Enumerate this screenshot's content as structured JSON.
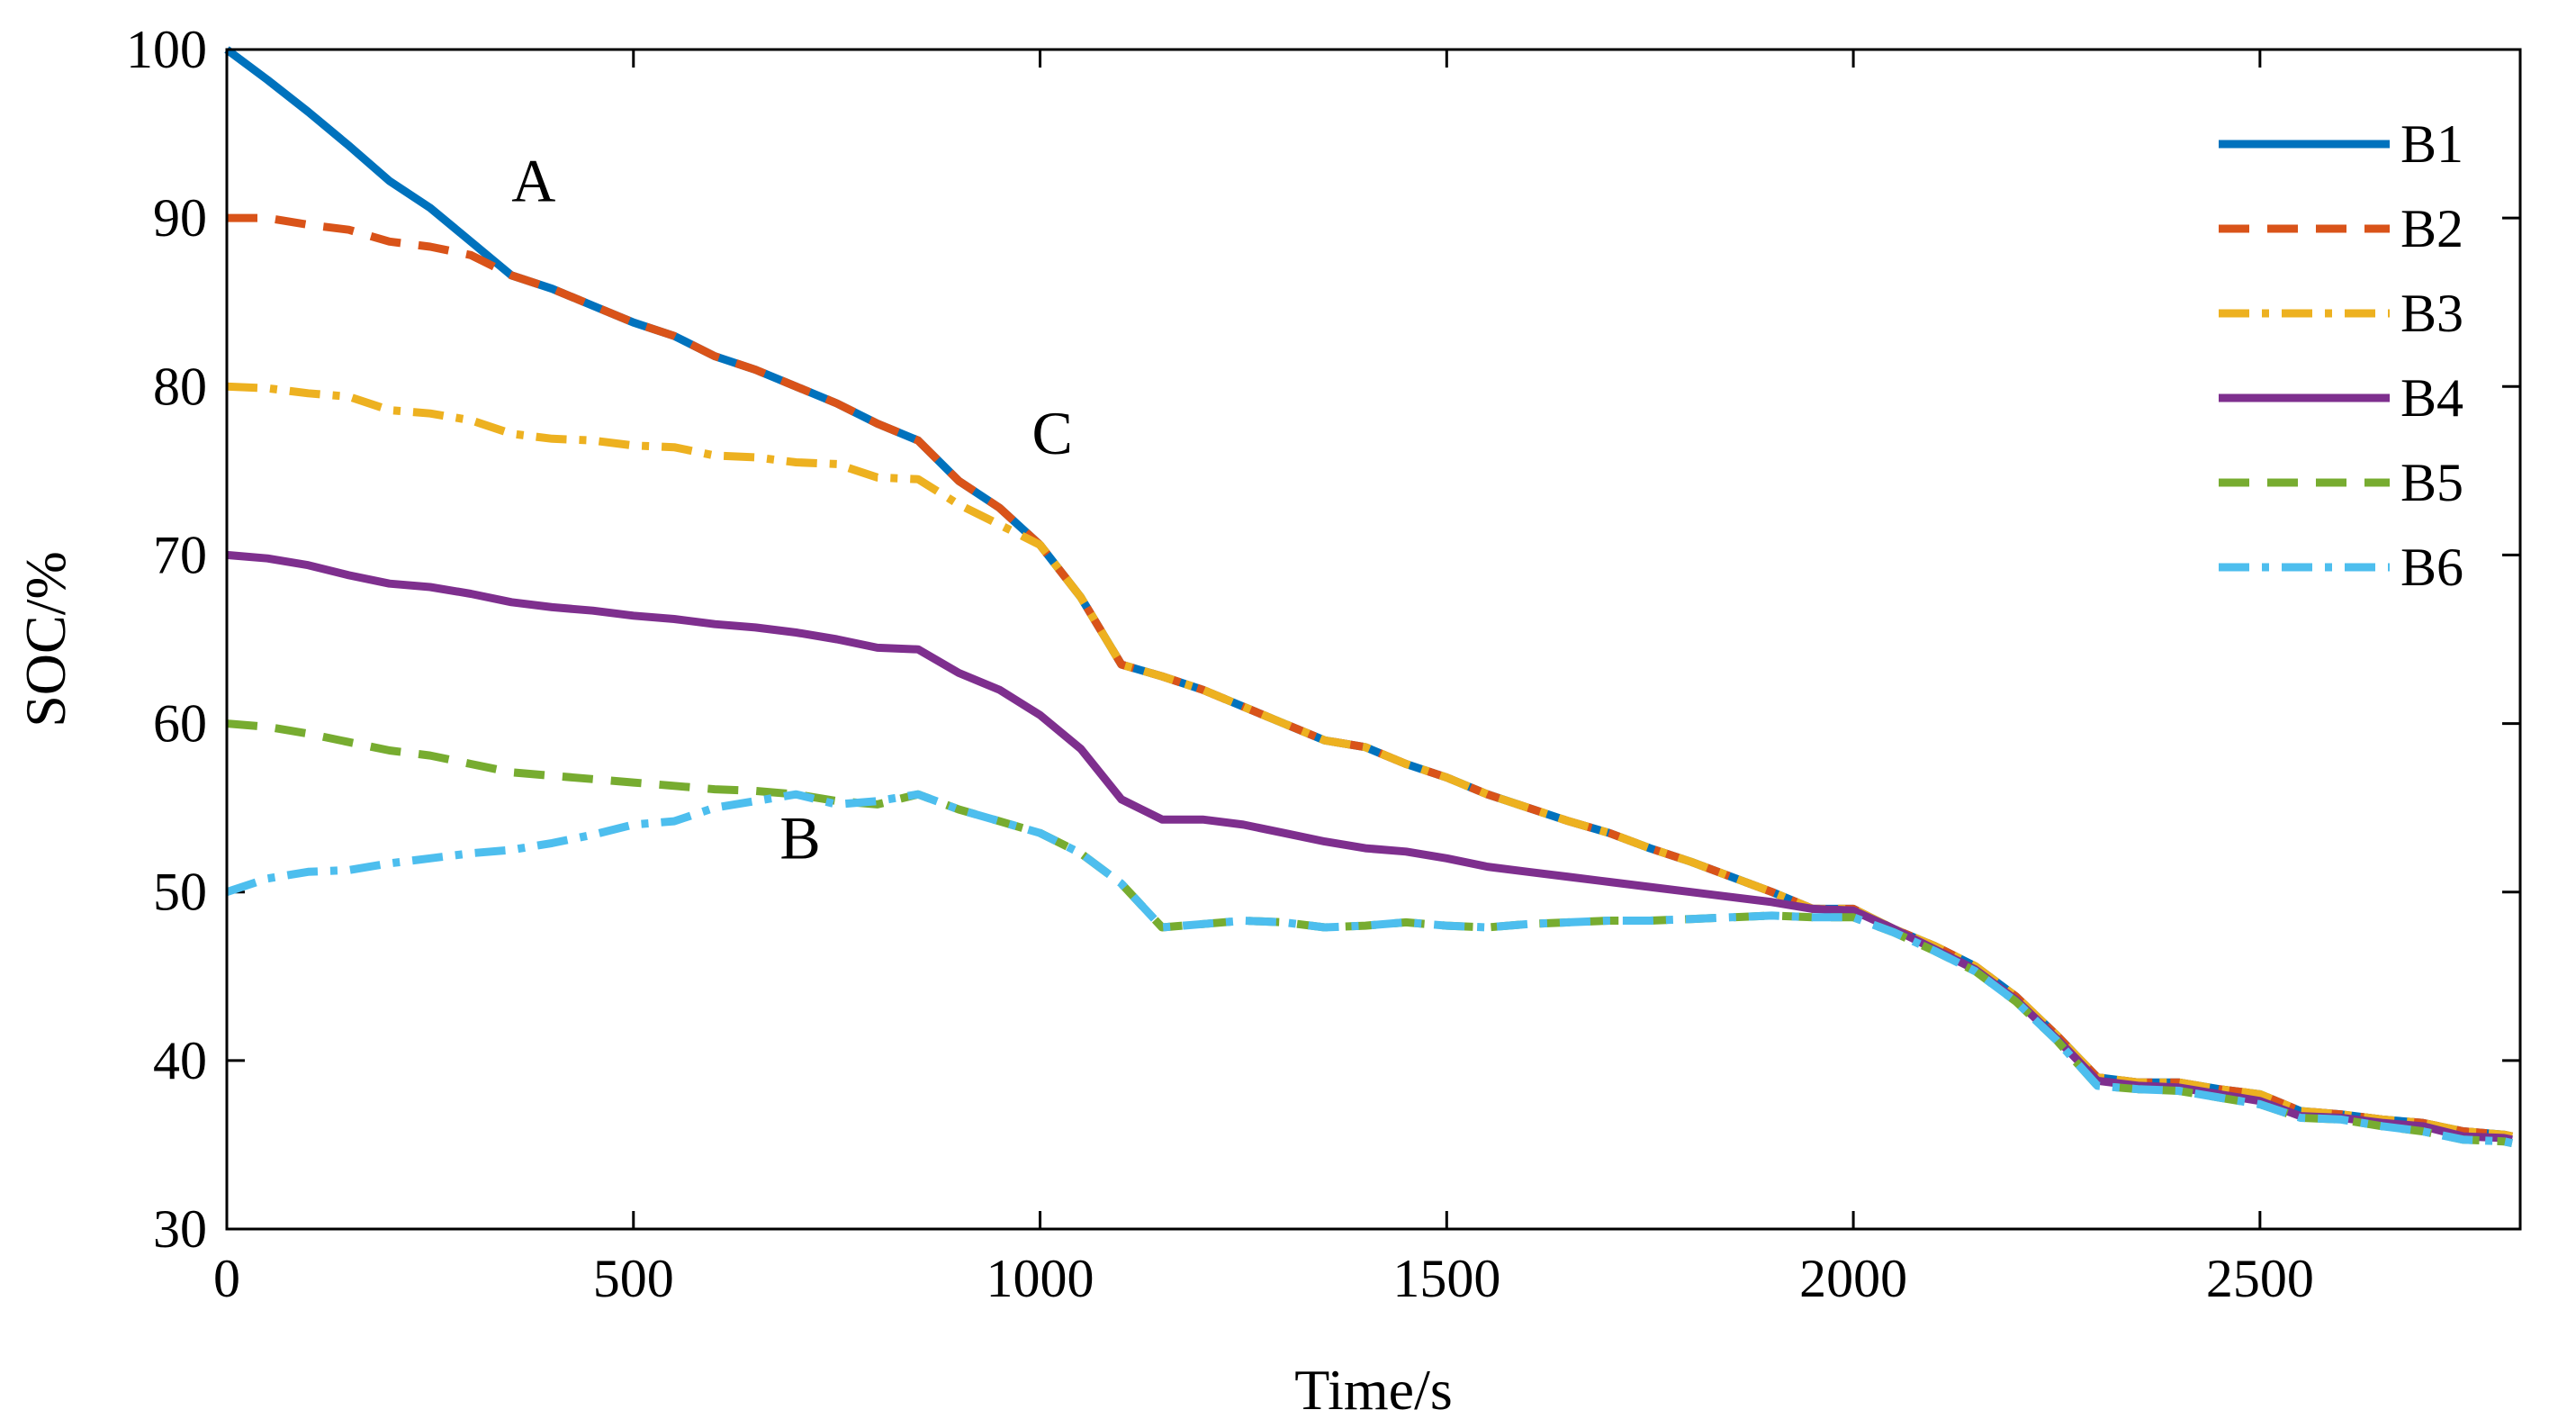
{
  "chart_data": {
    "type": "line",
    "title": "",
    "xlabel": "Time/s",
    "ylabel": "SOC/%",
    "xlim": [
      0,
      2820
    ],
    "ylim": [
      30,
      100
    ],
    "xticks": [
      0,
      500,
      1000,
      1500,
      2000,
      2500
    ],
    "yticks": [
      30,
      40,
      50,
      60,
      70,
      80,
      90,
      100
    ],
    "xtick_labels": [
      "0",
      "500",
      "1000",
      "1500",
      "2000",
      "2500"
    ],
    "ytick_labels": [
      "30",
      "40",
      "50",
      "60",
      "70",
      "80",
      "90",
      "100"
    ],
    "legend_position": "top-right",
    "series": [
      {
        "name": "B1",
        "color": "#0072BD",
        "dash": "solid",
        "x": [
          0,
          50,
          100,
          150,
          200,
          250,
          300,
          350,
          400,
          450,
          500,
          550,
          600,
          650,
          700,
          750,
          800,
          850,
          900,
          950,
          1000,
          1050,
          1100,
          1150,
          1200,
          1250,
          1300,
          1350,
          1400,
          1450,
          1500,
          1550,
          1600,
          1650,
          1700,
          1750,
          1800,
          1850,
          1900,
          1950,
          2000,
          2050,
          2100,
          2150,
          2200,
          2250,
          2300,
          2350,
          2400,
          2450,
          2500,
          2550,
          2600,
          2650,
          2700,
          2750,
          2800,
          2810
        ],
        "y": [
          100,
          98.2,
          96.3,
          94.3,
          92.2,
          90.6,
          88.6,
          86.6,
          85.8,
          84.8,
          83.8,
          83.0,
          81.8,
          81.0,
          80.0,
          79.0,
          77.8,
          76.8,
          74.4,
          72.8,
          70.6,
          67.5,
          63.5,
          62.8,
          62.0,
          61.0,
          60.0,
          59.0,
          58.6,
          57.6,
          56.8,
          55.8,
          55.0,
          54.2,
          53.5,
          52.6,
          51.8,
          50.9,
          50.0,
          49.0,
          49.0,
          47.8,
          46.8,
          45.6,
          43.8,
          41.5,
          39.0,
          38.7,
          38.7,
          38.3,
          38.0,
          37.0,
          36.8,
          36.5,
          36.3,
          35.8,
          35.6,
          35.5
        ]
      },
      {
        "name": "B2",
        "color": "#D95319",
        "dash": "dashed",
        "x": [
          0,
          50,
          100,
          150,
          200,
          250,
          300,
          350,
          400,
          450,
          500,
          550,
          600,
          650,
          700,
          750,
          800,
          850,
          900,
          950,
          1000,
          1050,
          1100,
          1150,
          1200,
          1250,
          1300,
          1350,
          1400,
          1450,
          1500,
          1550,
          1600,
          1650,
          1700,
          1750,
          1800,
          1850,
          1900,
          1950,
          2000,
          2050,
          2100,
          2150,
          2200,
          2250,
          2300,
          2350,
          2400,
          2450,
          2500,
          2550,
          2600,
          2650,
          2700,
          2750,
          2800,
          2810
        ],
        "y": [
          90,
          90,
          89.6,
          89.3,
          88.6,
          88.3,
          87.8,
          86.6,
          85.8,
          84.8,
          83.8,
          83.0,
          81.8,
          81.0,
          80.0,
          79.0,
          77.8,
          76.8,
          74.4,
          72.8,
          70.6,
          67.5,
          63.5,
          62.8,
          62.0,
          61.0,
          60.0,
          59.0,
          58.6,
          57.6,
          56.8,
          55.8,
          55.0,
          54.2,
          53.5,
          52.6,
          51.8,
          50.9,
          50.0,
          49.0,
          49.0,
          47.8,
          46.8,
          45.6,
          43.8,
          41.5,
          39.0,
          38.7,
          38.7,
          38.3,
          38.0,
          37.0,
          36.8,
          36.5,
          36.3,
          35.8,
          35.6,
          35.5
        ]
      },
      {
        "name": "B3",
        "color": "#EDB120",
        "dash": "dashdot",
        "x": [
          0,
          50,
          100,
          150,
          200,
          250,
          300,
          350,
          400,
          450,
          500,
          550,
          600,
          650,
          700,
          750,
          800,
          850,
          900,
          950,
          1000,
          1050,
          1100,
          1150,
          1200,
          1250,
          1300,
          1350,
          1400,
          1450,
          1500,
          1550,
          1600,
          1650,
          1700,
          1750,
          1800,
          1850,
          1900,
          1950,
          2000,
          2050,
          2100,
          2150,
          2200,
          2250,
          2300,
          2350,
          2400,
          2450,
          2500,
          2550,
          2600,
          2650,
          2700,
          2750,
          2800,
          2810
        ],
        "y": [
          80,
          79.9,
          79.6,
          79.4,
          78.6,
          78.4,
          78.0,
          77.2,
          76.9,
          76.8,
          76.5,
          76.4,
          75.9,
          75.8,
          75.5,
          75.4,
          74.6,
          74.5,
          73.0,
          71.8,
          70.6,
          67.5,
          63.5,
          62.8,
          62.0,
          61.0,
          60.0,
          59.0,
          58.6,
          57.6,
          56.8,
          55.8,
          55.0,
          54.2,
          53.5,
          52.6,
          51.8,
          50.9,
          50.0,
          49.0,
          49.0,
          47.8,
          46.8,
          45.6,
          43.8,
          41.5,
          39.0,
          38.7,
          38.7,
          38.3,
          38.0,
          37.0,
          36.8,
          36.5,
          36.3,
          35.8,
          35.6,
          35.5
        ]
      },
      {
        "name": "B4",
        "color": "#7E2F8E",
        "dash": "solid",
        "x": [
          0,
          50,
          100,
          150,
          200,
          250,
          300,
          350,
          400,
          450,
          500,
          550,
          600,
          650,
          700,
          750,
          800,
          850,
          900,
          950,
          1000,
          1050,
          1100,
          1150,
          1200,
          1250,
          1300,
          1350,
          1400,
          1450,
          1500,
          1550,
          1600,
          1650,
          1700,
          1750,
          1800,
          1850,
          1900,
          1950,
          2000,
          2050,
          2100,
          2150,
          2200,
          2250,
          2300,
          2350,
          2400,
          2450,
          2500,
          2550,
          2600,
          2650,
          2700,
          2750,
          2800,
          2810
        ],
        "y": [
          70,
          69.8,
          69.4,
          68.8,
          68.3,
          68.1,
          67.7,
          67.2,
          66.9,
          66.7,
          66.4,
          66.2,
          65.9,
          65.7,
          65.4,
          65.0,
          64.5,
          64.4,
          63.0,
          62.0,
          60.5,
          58.5,
          55.5,
          54.3,
          54.3,
          54.0,
          53.5,
          53.0,
          52.6,
          52.4,
          52.0,
          51.5,
          51.2,
          50.9,
          50.6,
          50.3,
          50.0,
          49.7,
          49.4,
          49.0,
          48.9,
          47.8,
          46.6,
          45.4,
          43.6,
          41.3,
          38.8,
          38.5,
          38.4,
          38.0,
          37.6,
          36.7,
          36.6,
          36.3,
          36.1,
          35.5,
          35.4,
          35.3
        ]
      },
      {
        "name": "B5",
        "color": "#77AC30",
        "dash": "dashed",
        "x": [
          0,
          50,
          100,
          150,
          200,
          250,
          300,
          350,
          400,
          450,
          500,
          550,
          600,
          650,
          700,
          750,
          800,
          850,
          900,
          950,
          1000,
          1050,
          1100,
          1150,
          1200,
          1250,
          1300,
          1350,
          1400,
          1450,
          1500,
          1550,
          1600,
          1650,
          1700,
          1750,
          1800,
          1850,
          1900,
          1950,
          2000,
          2050,
          2100,
          2150,
          2200,
          2250,
          2300,
          2350,
          2400,
          2450,
          2500,
          2550,
          2600,
          2650,
          2700,
          2750,
          2800,
          2810
        ],
        "y": [
          60,
          59.8,
          59.4,
          58.9,
          58.4,
          58.1,
          57.6,
          57.1,
          56.9,
          56.7,
          56.5,
          56.3,
          56.1,
          56.0,
          55.8,
          55.4,
          55.2,
          55.8,
          54.9,
          54.2,
          53.5,
          52.3,
          50.5,
          47.9,
          48.1,
          48.3,
          48.2,
          47.9,
          48.0,
          48.2,
          48.0,
          47.9,
          48.1,
          48.2,
          48.3,
          48.3,
          48.4,
          48.5,
          48.6,
          48.5,
          48.5,
          47.6,
          46.5,
          45.3,
          43.5,
          41.2,
          38.5,
          38.3,
          38.2,
          37.8,
          37.4,
          36.6,
          36.5,
          36.1,
          35.8,
          35.3,
          35.2,
          35.1
        ]
      },
      {
        "name": "B6",
        "color": "#4DBEEE",
        "dash": "dashdot",
        "x": [
          0,
          50,
          100,
          150,
          200,
          250,
          300,
          350,
          400,
          450,
          500,
          550,
          600,
          650,
          700,
          750,
          800,
          850,
          900,
          950,
          1000,
          1050,
          1100,
          1150,
          1200,
          1250,
          1300,
          1350,
          1400,
          1450,
          1500,
          1550,
          1600,
          1650,
          1700,
          1750,
          1800,
          1850,
          1900,
          1950,
          2000,
          2050,
          2100,
          2150,
          2200,
          2250,
          2300,
          2350,
          2400,
          2450,
          2500,
          2550,
          2600,
          2650,
          2700,
          2750,
          2800,
          2810
        ],
        "y": [
          50,
          50.8,
          51.2,
          51.3,
          51.7,
          52.0,
          52.3,
          52.5,
          52.9,
          53.4,
          54.0,
          54.2,
          55.0,
          55.4,
          55.8,
          55.2,
          55.4,
          55.8,
          54.9,
          54.2,
          53.5,
          52.3,
          50.5,
          47.9,
          48.1,
          48.3,
          48.2,
          47.9,
          48.0,
          48.2,
          48.0,
          47.9,
          48.1,
          48.2,
          48.3,
          48.3,
          48.4,
          48.5,
          48.6,
          48.5,
          48.5,
          47.6,
          46.5,
          45.3,
          43.5,
          41.2,
          38.5,
          38.3,
          38.2,
          37.8,
          37.4,
          36.6,
          36.5,
          36.1,
          35.8,
          35.3,
          35.2,
          35.1
        ]
      }
    ],
    "annotations": [
      {
        "label": "A",
        "x": 350,
        "y": 91
      },
      {
        "label": "B",
        "x": 680,
        "y": 52
      },
      {
        "label": "C",
        "x": 990,
        "y": 76
      }
    ]
  }
}
